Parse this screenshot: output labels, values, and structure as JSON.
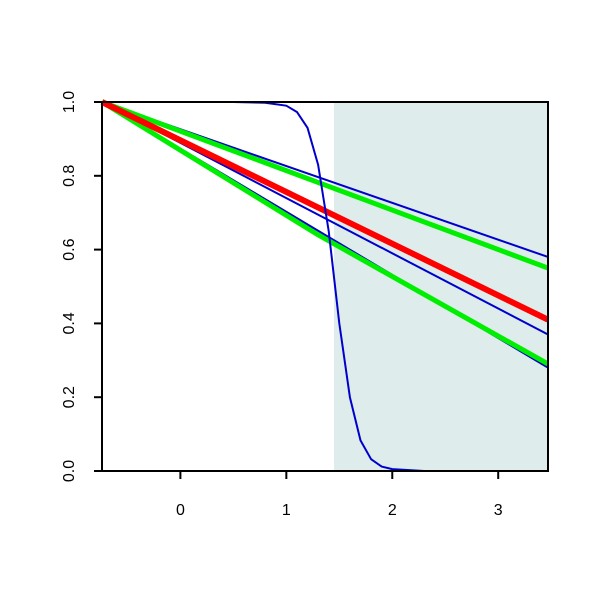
{
  "chart_data": {
    "type": "line",
    "xlim": [
      -0.74,
      3.47
    ],
    "ylim": [
      0,
      1
    ],
    "xticks": [
      0,
      1,
      2,
      3
    ],
    "yticks": [
      {
        "value": 0,
        "label": "0.0"
      },
      0.2,
      0.4,
      0.6,
      0.8,
      {
        "value": 1,
        "label": "1.0"
      }
    ],
    "shade": {
      "x": [
        1.45,
        3.47
      ],
      "color": "#deecec"
    },
    "series": [
      {
        "color": "#0000cc",
        "lwd": 2,
        "x": [
          -0.74,
          3.47
        ],
        "values": [
          1,
          0.58
        ]
      },
      {
        "color": "#0000cc",
        "lwd": 2,
        "x": [
          -0.74,
          3.47
        ],
        "values": [
          1,
          0.37
        ]
      },
      {
        "color": "#0000cc",
        "lwd": 2,
        "x": [
          -0.74,
          3.47
        ],
        "values": [
          1,
          0.28
        ]
      },
      {
        "color": "#00ee00",
        "lwd": 5,
        "x": [
          -0.74,
          3.47
        ],
        "values": [
          1,
          0.55
        ]
      },
      {
        "color": "#00ee00",
        "lwd": 5,
        "x": [
          -0.74,
          1.3,
          3.47
        ],
        "values": [
          1,
          0.64,
          0.29
        ]
      },
      {
        "color": "#ff0000",
        "lwd": 6,
        "x": [
          -0.74,
          3.47
        ],
        "values": [
          1,
          0.41
        ]
      },
      {
        "color": "#0000cc",
        "lwd": 2,
        "x": [
          -0.74,
          0.5,
          0.8,
          1.0,
          1.1,
          1.2,
          1.3,
          1.4,
          1.5,
          1.6,
          1.7,
          1.8,
          1.9,
          2.0,
          2.3,
          3.47
        ],
        "values": [
          1,
          1,
          0.998,
          0.99,
          0.973,
          0.93,
          0.83,
          0.65,
          0.4,
          0.2,
          0.083,
          0.032,
          0.012,
          0.005,
          0,
          0
        ]
      }
    ]
  }
}
